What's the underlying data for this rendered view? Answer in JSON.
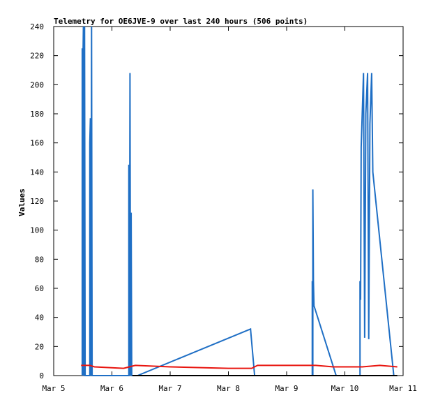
{
  "chart_data": {
    "type": "line",
    "title": "Telemetry for OE6JVE-9 over last 240 hours (506 points)",
    "y_label": "Values",
    "xlim": [
      5,
      11
    ],
    "xticks": [
      {
        "value": 5,
        "label": "Mar 5"
      },
      {
        "value": 6,
        "label": "Mar 6"
      },
      {
        "value": 7,
        "label": "Mar 7"
      },
      {
        "value": 8,
        "label": "Mar 8"
      },
      {
        "value": 9,
        "label": "Mar 9"
      },
      {
        "value": 10,
        "label": "Mar 10"
      },
      {
        "value": 11,
        "label": "Mar 11"
      }
    ],
    "ylim": [
      0,
      240
    ],
    "yticks": [
      0,
      20,
      40,
      60,
      80,
      100,
      120,
      140,
      160,
      180,
      200,
      220,
      240
    ],
    "grid": false,
    "series": [
      {
        "color": "#1f6fc5",
        "x": [
          5.49,
          5.49,
          5.5,
          5.5,
          5.51,
          5.52,
          5.53,
          5.54,
          5.62,
          5.62,
          5.63,
          5.64,
          5.65,
          5.66,
          6.29,
          6.29,
          6.3,
          6.31,
          6.32,
          6.33,
          6.34,
          6.44,
          8.38,
          8.45,
          9.44,
          9.44,
          9.45,
          9.45,
          9.46,
          9.47,
          9.85,
          10.26,
          10.26,
          10.27,
          10.28,
          10.32,
          10.34,
          10.36,
          10.39,
          10.41,
          10.43,
          10.46,
          10.48,
          10.84
        ],
        "values": [
          0,
          225,
          0,
          208,
          240,
          0,
          240,
          0,
          0,
          160,
          177,
          0,
          240,
          0,
          0,
          145,
          0,
          208,
          0,
          112,
          0,
          0,
          32,
          0,
          0,
          65,
          0,
          128,
          65,
          48,
          0,
          0,
          65,
          52,
          157,
          208,
          26,
          180,
          208,
          25,
          173,
          208,
          140,
          0
        ]
      },
      {
        "color": "#e8150f",
        "x": [
          5.47,
          5.62,
          5.7,
          6.2,
          6.3,
          6.4,
          7.0,
          8.0,
          8.4,
          8.5,
          9.5,
          9.8,
          10.3,
          10.6,
          10.9
        ],
        "values": [
          7,
          7,
          6,
          5,
          6,
          7,
          6,
          5,
          5,
          7,
          7,
          6,
          6,
          7,
          6
        ]
      },
      {
        "color": "#000000",
        "x": [
          6.35,
          10.9
        ],
        "values": [
          0,
          0
        ]
      }
    ]
  }
}
